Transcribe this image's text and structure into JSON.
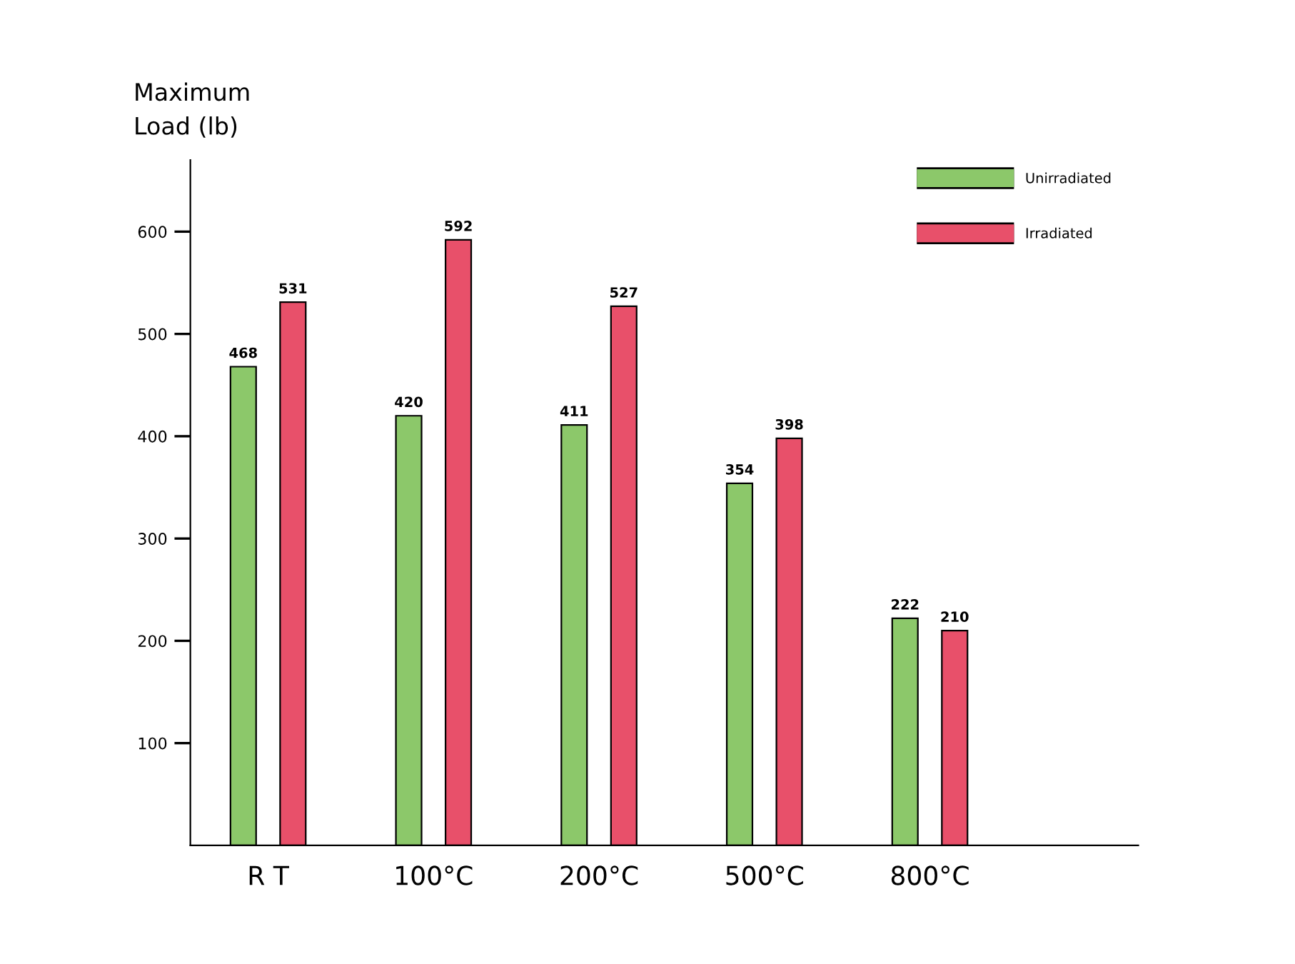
{
  "chart_data": {
    "type": "bar",
    "ylabel": "Maximum\nLoad (lb)",
    "categories": [
      "R T",
      "100°C",
      "200°C",
      "500°C",
      "800°C"
    ],
    "series": [
      {
        "name": "Unirradiated",
        "color": "#8cc86a",
        "values": [
          468,
          420,
          411,
          354,
          222
        ]
      },
      {
        "name": "Irradiated",
        "color": "#e8506a",
        "values": [
          531,
          592,
          527,
          398,
          210
        ]
      }
    ],
    "ylim": [
      0,
      670
    ],
    "yticks": [
      100,
      200,
      300,
      400,
      500,
      600
    ],
    "data_labels": true,
    "legend": "top right",
    "grid": false
  }
}
